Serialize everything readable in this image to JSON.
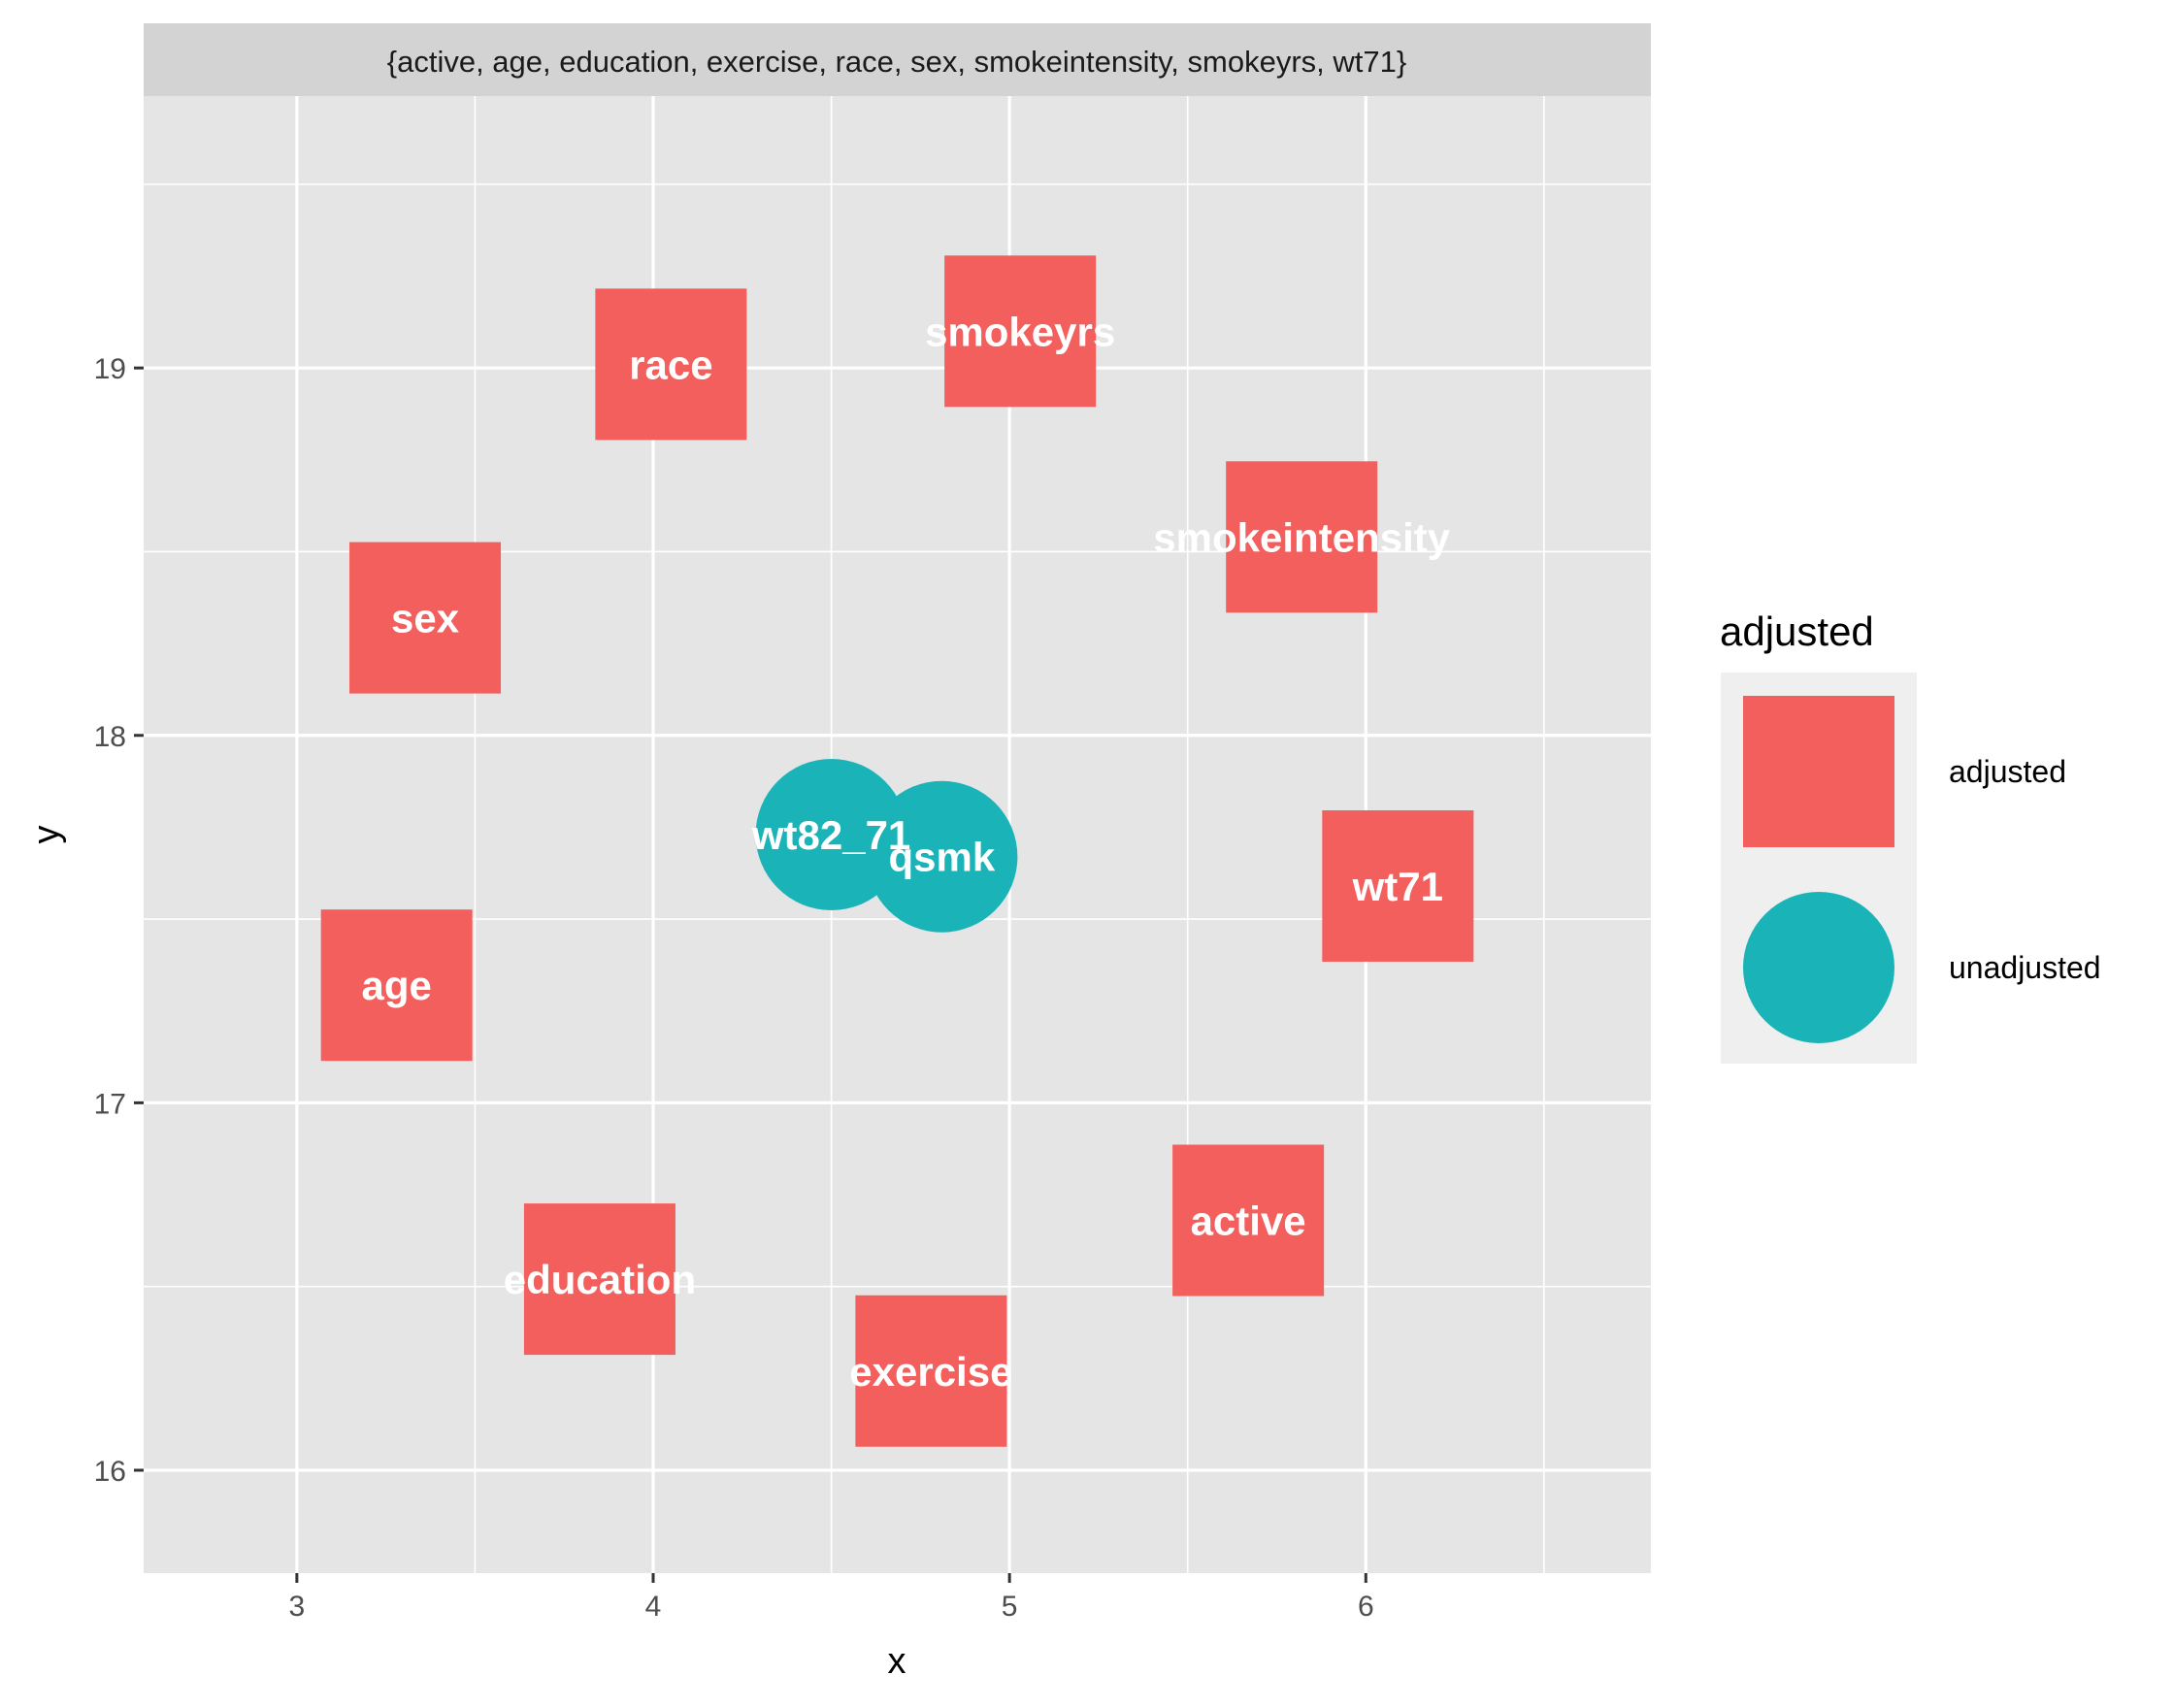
{
  "chart_data": {
    "type": "scatter",
    "title": "",
    "facet_label": "{active, age, education, exercise, race, sex, smokeintensity, smokeyrs, wt71}",
    "xlabel": "x",
    "ylabel": "y",
    "xlim": [
      2.57,
      6.8
    ],
    "ylim": [
      15.72,
      19.74
    ],
    "x_ticks": [
      3,
      4,
      5,
      6
    ],
    "y_ticks": [
      16,
      17,
      18,
      19
    ],
    "grid": true,
    "legend_position": "right",
    "legend_title": "adjusted",
    "colors": {
      "adjusted": "#F25F5C",
      "unadjusted": "#1AB4B8",
      "panel": "#E5E5E5",
      "strip": "#D3D3D3",
      "grid": "#FFFFFF"
    },
    "legend": [
      {
        "key": "adjusted",
        "label": "adjusted",
        "shape": "square"
      },
      {
        "key": "unadjusted",
        "label": "unadjusted",
        "shape": "circle"
      }
    ],
    "nodes": [
      {
        "name": "race",
        "x": 4.05,
        "y": 19.01,
        "group": "adjusted"
      },
      {
        "name": "smokeyrs",
        "x": 5.03,
        "y": 19.1,
        "group": "adjusted"
      },
      {
        "name": "smokeintensity",
        "x": 5.82,
        "y": 18.54,
        "group": "adjusted"
      },
      {
        "name": "sex",
        "x": 3.36,
        "y": 18.32,
        "group": "adjusted"
      },
      {
        "name": "wt82_71",
        "x": 4.5,
        "y": 17.73,
        "group": "unadjusted"
      },
      {
        "name": "qsmk",
        "x": 4.81,
        "y": 17.67,
        "group": "unadjusted"
      },
      {
        "name": "wt71",
        "x": 6.09,
        "y": 17.59,
        "group": "adjusted"
      },
      {
        "name": "age",
        "x": 3.28,
        "y": 17.32,
        "group": "adjusted"
      },
      {
        "name": "active",
        "x": 5.67,
        "y": 16.68,
        "group": "adjusted"
      },
      {
        "name": "education",
        "x": 3.85,
        "y": 16.52,
        "group": "adjusted"
      },
      {
        "name": "exercise",
        "x": 4.78,
        "y": 16.27,
        "group": "adjusted"
      }
    ]
  }
}
